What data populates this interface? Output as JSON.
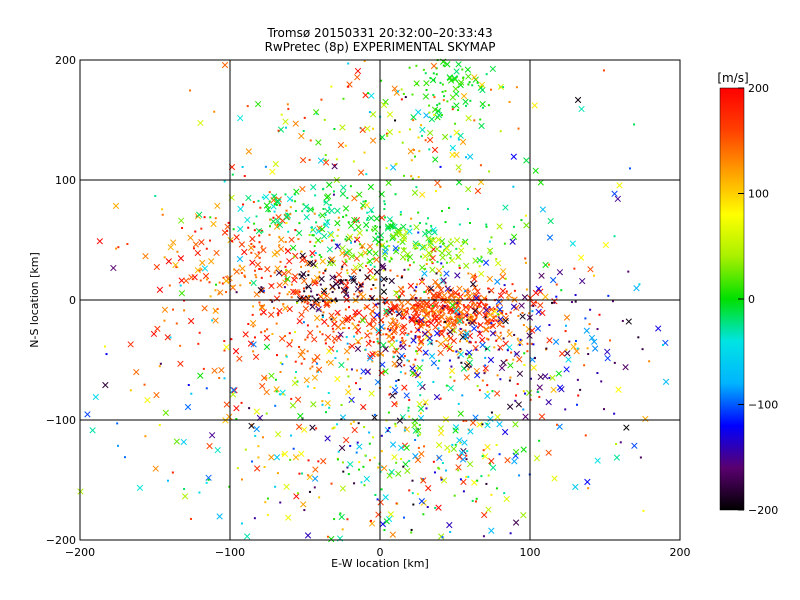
{
  "chart_data": {
    "type": "scatter",
    "title": "Tromsø 20150331 20:32:00–20:33:43",
    "subtitle": "RwPretec (8p) EXPERIMENTAL SKYMAP",
    "xlabel": "E-W location [km]",
    "ylabel": "N-S location [km]",
    "xlim": [
      -200,
      200
    ],
    "ylim": [
      -200,
      200
    ],
    "xticks": [
      -200,
      -100,
      0,
      100,
      200
    ],
    "yticks": [
      -200,
      -100,
      0,
      100,
      200
    ],
    "grid": true,
    "colorbar": {
      "label": "[m/s]",
      "range": [
        -200,
        200
      ],
      "ticks": [
        200,
        100,
        0,
        -100,
        -200
      ],
      "colormap": [
        "#000000",
        "#5a0070",
        "#0000ff",
        "#00b4ff",
        "#00e4e4",
        "#00e000",
        "#a8f000",
        "#ffff00",
        "#ffa000",
        "#ff4000",
        "#ff0000"
      ]
    },
    "series": [
      {
        "name": "cross markers",
        "marker": "x"
      },
      {
        "name": "dot markers",
        "marker": "dot"
      }
    ],
    "clusters": [
      {
        "cx": 45,
        "cy": -12,
        "sx": 25,
        "sy": 12,
        "n": 320,
        "vmin": 120,
        "vmax": 200
      },
      {
        "cx": 0,
        "cy": -15,
        "sx": 60,
        "sy": 25,
        "n": 420,
        "vmin": 110,
        "vmax": 200
      },
      {
        "cx": -80,
        "cy": 35,
        "sx": 35,
        "sy": 25,
        "n": 170,
        "vmin": 110,
        "vmax": 200
      },
      {
        "cx": -45,
        "cy": 75,
        "sx": 30,
        "sy": 12,
        "n": 90,
        "vmin": -40,
        "vmax": 10
      },
      {
        "cx": 10,
        "cy": 60,
        "sx": 30,
        "sy": 12,
        "n": 90,
        "vmin": -30,
        "vmax": 10
      },
      {
        "cx": 25,
        "cy": 40,
        "sx": 35,
        "sy": 10,
        "n": 130,
        "vmin": 10,
        "vmax": 60
      },
      {
        "cx": -30,
        "cy": 10,
        "sx": 25,
        "sy": 10,
        "n": 80,
        "vmin": -200,
        "vmax": -170
      },
      {
        "cx": 50,
        "cy": 180,
        "sx": 15,
        "sy": 15,
        "n": 90,
        "vmin": -20,
        "vmax": 20
      },
      {
        "cx": 10,
        "cy": 140,
        "sx": 45,
        "sy": 30,
        "n": 140,
        "vmin": -80,
        "vmax": 200
      },
      {
        "cx": 30,
        "cy": -100,
        "sx": 45,
        "sy": 60,
        "n": 380,
        "vmin": -200,
        "vmax": 200
      },
      {
        "cx": 80,
        "cy": -30,
        "sx": 50,
        "sy": 30,
        "n": 160,
        "vmin": -200,
        "vmax": -80
      },
      {
        "cx": -60,
        "cy": -110,
        "sx": 60,
        "sy": 50,
        "n": 140,
        "vmin": -100,
        "vmax": 200
      },
      {
        "cx": 0,
        "cy": 0,
        "sx": 120,
        "sy": 120,
        "n": 320,
        "vmin": -200,
        "vmax": 200
      }
    ]
  }
}
